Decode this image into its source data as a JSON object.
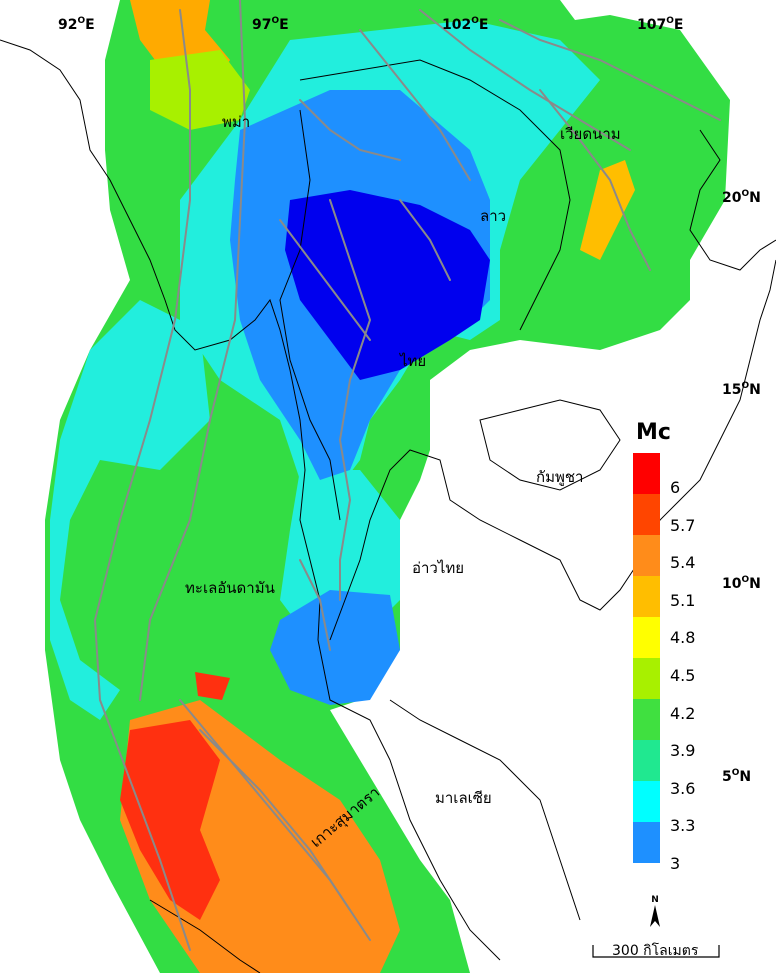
{
  "map": {
    "longitude_labels": [
      {
        "deg": "92",
        "hemi": "E"
      },
      {
        "deg": "97",
        "hemi": "E"
      },
      {
        "deg": "102",
        "hemi": "E"
      },
      {
        "deg": "107",
        "hemi": "E"
      }
    ],
    "latitude_labels": [
      {
        "deg": "20",
        "hemi": "N"
      },
      {
        "deg": "15",
        "hemi": "N"
      },
      {
        "deg": "10",
        "hemi": "N"
      },
      {
        "deg": "5",
        "hemi": "N"
      }
    ],
    "place_labels": {
      "myanmar": "พม่า",
      "vietnam": "เวียดนาม",
      "laos": "ลาว",
      "thailand": "ไทย",
      "cambodia": "กัมพูชา",
      "gulf_of_thailand": "อ่าวไทย",
      "andaman_sea": "ทะเลอันดามัน",
      "malaysia": "มาเลเซีย",
      "sumatra": "เกาะสุมาตรา"
    },
    "legend": {
      "title": "Mc",
      "ticks": [
        "6",
        "5.7",
        "5.4",
        "5.1",
        "4.8",
        "4.5",
        "4.2",
        "3.9",
        "3.6",
        "3.3",
        "3"
      ],
      "colors": [
        "#ff0000",
        "#ff4500",
        "#ff8c1a",
        "#ffbe00",
        "#ffff00",
        "#a8f000",
        "#40e040",
        "#20e890",
        "#00ffff",
        "#1e90ff",
        "#0000ff"
      ]
    },
    "scale_bar_label": "300 กิโลเมตร",
    "north_arrow_label": "N",
    "colors": {
      "fault_lines": "#8a8a8a",
      "coastline": "#000000"
    }
  }
}
